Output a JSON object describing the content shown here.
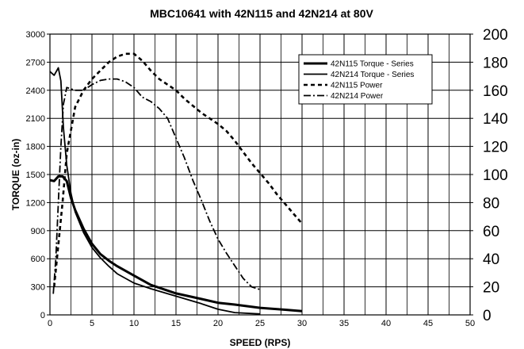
{
  "chart_data": {
    "type": "line",
    "title": "MBC10641 with 42N115 and 42N214 at 80V",
    "xlabel": "SPEED (RPS)",
    "ylabel": "TORQUE (oz-in)",
    "xlim": [
      0,
      50
    ],
    "ylim": [
      0,
      3000
    ],
    "y2lim": [
      0,
      200
    ],
    "x_ticks": [
      "0",
      "5",
      "10",
      "15",
      "20",
      "25",
      "30",
      "35",
      "40",
      "45",
      "50"
    ],
    "y_ticks": [
      "0",
      "300",
      "600",
      "900",
      "1200",
      "1500",
      "1800",
      "2100",
      "2400",
      "2700",
      "3000"
    ],
    "y2_ticks": [
      "0",
      "20",
      "40",
      "60",
      "80",
      "100",
      "120",
      "140",
      "160",
      "180",
      "200"
    ],
    "grid": true,
    "legend_position": "top-right",
    "series": [
      {
        "name": "42N115 Torque - Series",
        "axis": "left",
        "style": "solid-thick",
        "color": "#000000",
        "x": [
          0,
          0.5,
          1,
          1.5,
          2,
          2.5,
          3,
          4,
          5,
          6,
          7,
          8,
          10,
          12,
          15,
          18,
          20,
          22,
          25,
          28,
          30
        ],
        "y": [
          1440,
          1430,
          1480,
          1480,
          1430,
          1250,
          1120,
          920,
          760,
          650,
          580,
          520,
          420,
          320,
          230,
          170,
          130,
          110,
          75,
          55,
          40
        ]
      },
      {
        "name": "42N214 Torque - Series",
        "axis": "left",
        "style": "solid",
        "color": "#000000",
        "x": [
          0,
          0.5,
          1,
          1.3,
          1.6,
          2,
          2.5,
          3,
          4,
          5,
          6,
          7,
          8,
          10,
          12,
          15,
          18,
          20,
          22,
          25
        ],
        "y": [
          2600,
          2560,
          2640,
          2500,
          2000,
          1600,
          1300,
          1100,
          880,
          720,
          610,
          520,
          440,
          340,
          280,
          200,
          120,
          60,
          25,
          10
        ]
      },
      {
        "name": "42N115 Power",
        "axis": "right",
        "style": "dashed",
        "color": "#000000",
        "x": [
          0.5,
          1,
          1.5,
          2,
          3,
          4,
          5,
          6,
          7,
          8,
          9,
          10,
          11,
          12,
          13,
          14,
          15,
          16,
          17,
          18,
          19,
          20,
          21,
          22,
          23,
          24,
          25,
          26,
          27,
          28,
          29,
          30
        ],
        "y": [
          20,
          50,
          80,
          115,
          148,
          160,
          168,
          174,
          180,
          184,
          186,
          186,
          181,
          174,
          168,
          164,
          160,
          154,
          149,
          144,
          140,
          136,
          131,
          124,
          116,
          108,
          101,
          94,
          86,
          79,
          72,
          65
        ]
      },
      {
        "name": "42N214 Power",
        "axis": "right",
        "style": "dash-dot",
        "color": "#000000",
        "x": [
          0.4,
          0.7,
          1,
          1.3,
          1.6,
          2,
          3,
          4,
          5,
          6,
          7,
          8,
          9,
          10,
          11,
          12,
          13,
          14,
          15,
          16,
          17,
          18,
          19,
          20,
          21,
          22,
          23,
          24,
          25
        ],
        "y": [
          15,
          40,
          80,
          120,
          150,
          162,
          160,
          160,
          164,
          167,
          168,
          168,
          166,
          162,
          155,
          152,
          147,
          140,
          126,
          112,
          96,
          82,
          67,
          54,
          44,
          35,
          26,
          20,
          18
        ]
      }
    ]
  }
}
